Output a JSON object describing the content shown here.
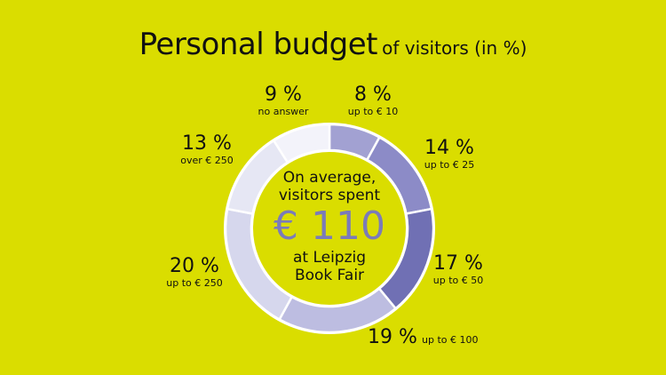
{
  "chart_data": {
    "type": "pie",
    "donut": true,
    "title": "Personal budget",
    "subtitle": "of visitors (in %)",
    "unit": "%",
    "slices": [
      {
        "label": "up to € 10",
        "value": 8,
        "value_label": "8 %",
        "color": "#a2a1d2"
      },
      {
        "label": "up to € 25",
        "value": 14,
        "value_label": "14 %",
        "color": "#8c8bc7"
      },
      {
        "label": "up to € 50",
        "value": 17,
        "value_label": "17 %",
        "color": "#7070b4"
      },
      {
        "label": "up to € 100",
        "value": 19,
        "value_label": "19 %",
        "color": "#bdbde1"
      },
      {
        "label": "up to € 250",
        "value": 20,
        "value_label": "20 %",
        "color": "#d6d7ed"
      },
      {
        "label": "over € 250",
        "value": 13,
        "value_label": "13 %",
        "color": "#e6e7f4"
      },
      {
        "label": "no answer",
        "value": 9,
        "value_label": "9 %",
        "color": "#f3f3fa"
      }
    ],
    "center_text": {
      "line1": "On average,",
      "line2": "visitors spent",
      "amount": "€ 110",
      "line3": "at Leipzig",
      "line4": "Book Fair"
    }
  }
}
